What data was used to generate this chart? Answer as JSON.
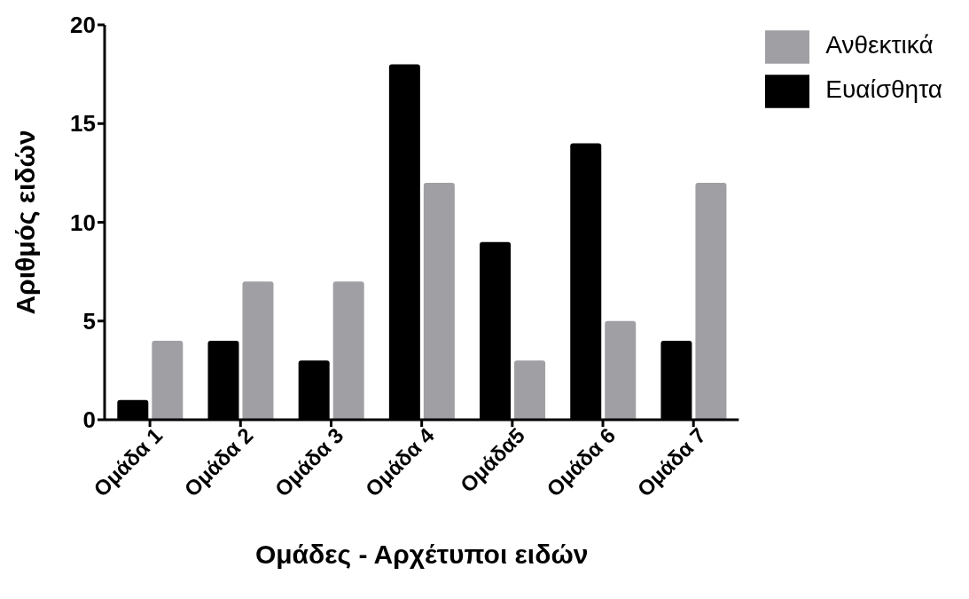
{
  "chart_data": {
    "type": "bar",
    "xlabel": "Ομάδες - Αρχέτυποι ειδών",
    "ylabel": "Αριθμός ειδών",
    "categories": [
      "Ομάδα 1",
      "Ομάδα 2",
      "Ομάδα 3",
      "Ομάδα 4",
      "Ομάδα5",
      "Ομάδα 6",
      "Ομάδα 7"
    ],
    "series": [
      {
        "name": "Ευαίσθητα",
        "color": "#000000",
        "values": [
          1,
          4,
          3,
          18,
          9,
          14,
          4
        ]
      },
      {
        "name": "Ανθεκτικά",
        "color": "#a0a0a4",
        "values": [
          4,
          7,
          7,
          12,
          3,
          5,
          12
        ]
      }
    ],
    "ylim": [
      0,
      20
    ],
    "yticks": [
      0,
      5,
      10,
      15,
      20
    ],
    "grid": false,
    "legend": "top right"
  }
}
